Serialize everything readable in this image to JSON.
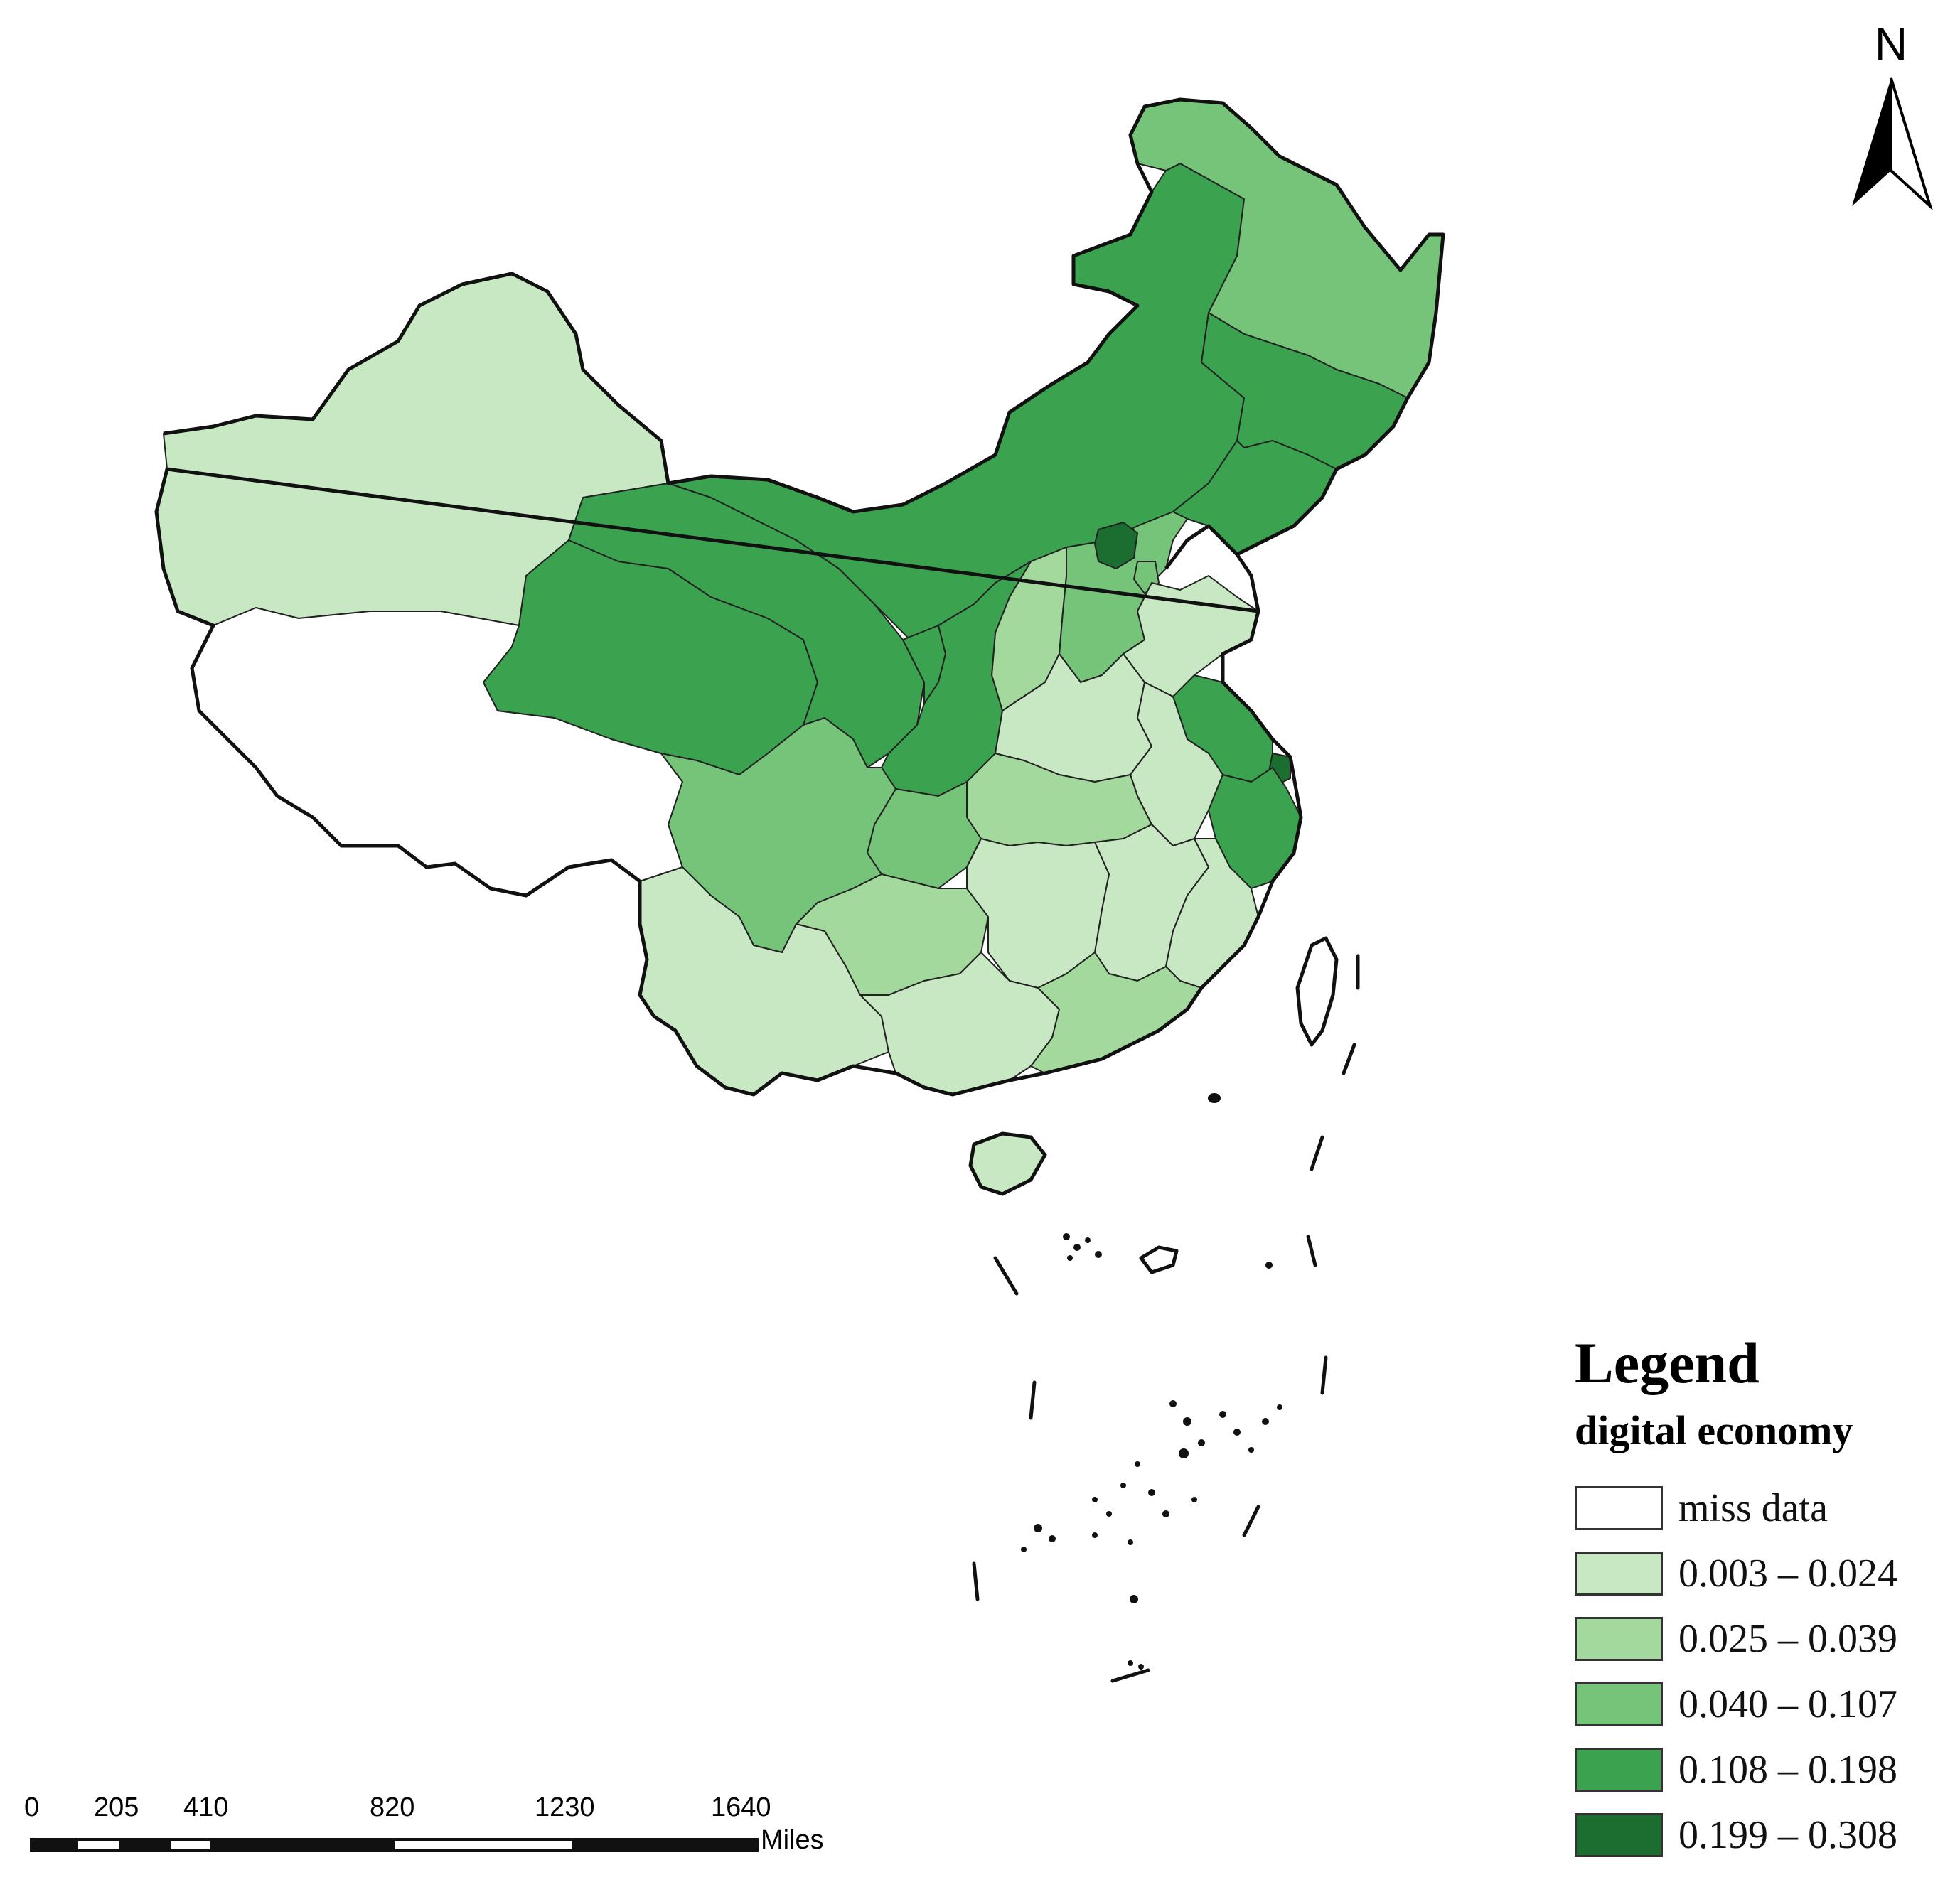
{
  "north_arrow": {
    "label": "N"
  },
  "legend": {
    "title": "Legend",
    "subtitle": "digital economy",
    "classes": [
      {
        "label": "miss data",
        "color": "#ffffff"
      },
      {
        "label": "0.003 – 0.024",
        "color": "#c8e8c4"
      },
      {
        "label": "0.025 – 0.039",
        "color": "#a3d99c"
      },
      {
        "label": "0.040 – 0.107",
        "color": "#76c47a"
      },
      {
        "label": "0.108 – 0.198",
        "color": "#3ba350"
      },
      {
        "label": "0.199 – 0.308",
        "color": "#1b6e30"
      }
    ]
  },
  "scale_bar": {
    "ticks": [
      "0",
      "205",
      "410",
      "820",
      "1230",
      "1640"
    ],
    "unit": "Miles"
  }
}
